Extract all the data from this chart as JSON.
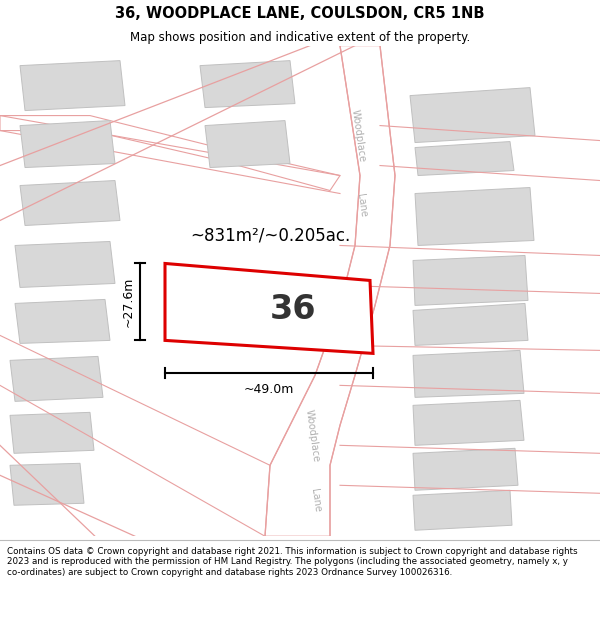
{
  "title": "36, WOODPLACE LANE, COULSDON, CR5 1NB",
  "subtitle": "Map shows position and indicative extent of the property.",
  "footer": "Contains OS data © Crown copyright and database right 2021. This information is subject to Crown copyright and database rights 2023 and is reproduced with the permission of HM Land Registry. The polygons (including the associated geometry, namely x, y co-ordinates) are subject to Crown copyright and database rights 2023 Ordnance Survey 100026316.",
  "area_text": "~831m²/~0.205ac.",
  "width_label": "~49.0m",
  "height_label": "~27.6m",
  "house_number": "36",
  "map_bg": "#ffffff",
  "road_line": "#e8a0a0",
  "building_fill": "#d8d8d8",
  "building_edge": "#c0c0c0",
  "highlight": "#dd0000",
  "lane_text_color": "#b0b0b0",
  "dim_line_color": "#000000",
  "area_text_color": "#000000",
  "num_color": "#333333",
  "title_color": "#000000",
  "footer_color": "#000000"
}
